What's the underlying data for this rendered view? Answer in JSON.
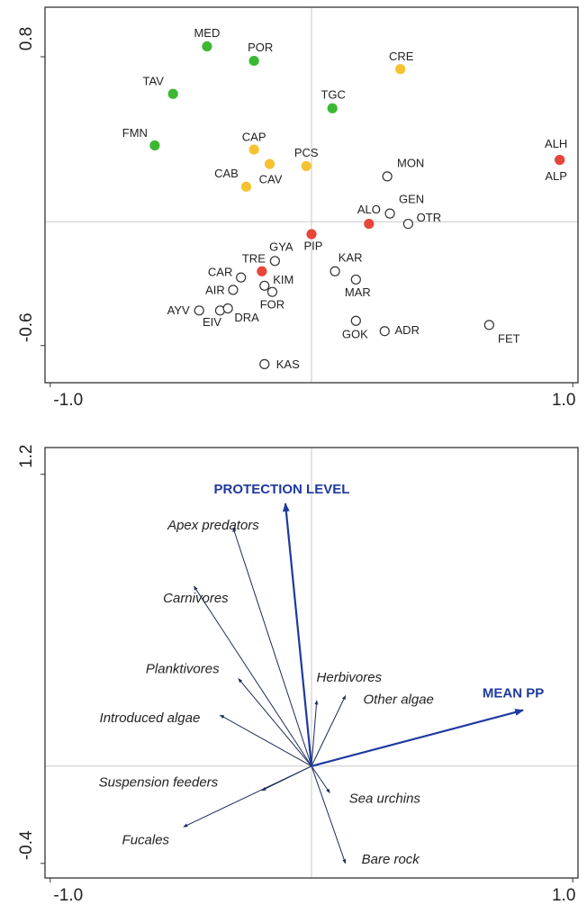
{
  "chart_data": [
    {
      "type": "scatter",
      "xlim": [
        -1.02,
        1.02
      ],
      "ylim": [
        -0.78,
        1.04
      ],
      "xticks": [
        {
          "value": -1,
          "label": "-1.0"
        },
        {
          "value": 1,
          "label": "1.0"
        }
      ],
      "yticks": [
        {
          "value": -0.6,
          "label": "-0.6"
        },
        {
          "value": 0.8,
          "label": "0.8"
        }
      ],
      "points": [
        {
          "label": "MED",
          "x": -0.4,
          "y": 0.85,
          "color": "#3cb833"
        },
        {
          "label": "POR",
          "x": -0.22,
          "y": 0.78,
          "color": "#3cb833"
        },
        {
          "label": "TAV",
          "x": -0.53,
          "y": 0.62,
          "color": "#3cb833"
        },
        {
          "label": "TGC",
          "x": 0.08,
          "y": 0.55,
          "color": "#3cb833"
        },
        {
          "label": "FMN",
          "x": -0.6,
          "y": 0.37,
          "color": "#3cb833"
        },
        {
          "label": "CRE",
          "x": 0.34,
          "y": 0.74,
          "color": "#f5c230"
        },
        {
          "label": "CAP",
          "x": -0.22,
          "y": 0.35,
          "color": "#f5c230"
        },
        {
          "label": "CAV",
          "x": -0.16,
          "y": 0.28,
          "color": "#f5c230"
        },
        {
          "label": "CAB",
          "x": -0.25,
          "y": 0.17,
          "color": "#f5c230"
        },
        {
          "label": "PCS",
          "x": -0.02,
          "y": 0.27,
          "color": "#f5c230"
        },
        {
          "label": "ALH",
          "x": 0.95,
          "y": 0.3,
          "color": "#e8463a"
        },
        {
          "label": "ALP",
          "x": 0.95,
          "y": 0.3,
          "color": "#e8463a"
        },
        {
          "label": "MON",
          "x": 0.29,
          "y": 0.22,
          "color": "#ffffff"
        },
        {
          "label": "GEN",
          "x": 0.3,
          "y": 0.04,
          "color": "#ffffff"
        },
        {
          "label": "ALO",
          "x": 0.22,
          "y": -0.01,
          "color": "#e8463a"
        },
        {
          "label": "OTR",
          "x": 0.37,
          "y": -0.01,
          "color": "#ffffff"
        },
        {
          "label": "PIP",
          "x": 0.0,
          "y": -0.06,
          "color": "#e8463a"
        },
        {
          "label": "GYA",
          "x": -0.14,
          "y": -0.19,
          "color": "#ffffff"
        },
        {
          "label": "KAR",
          "x": 0.09,
          "y": -0.24,
          "color": "#ffffff"
        },
        {
          "label": "TRE",
          "x": -0.19,
          "y": -0.24,
          "color": "#e8463a"
        },
        {
          "label": "CAR",
          "x": -0.27,
          "y": -0.27,
          "color": "#ffffff"
        },
        {
          "label": "MAR",
          "x": 0.17,
          "y": -0.28,
          "color": "#ffffff"
        },
        {
          "label": "KIM",
          "x": -0.18,
          "y": -0.31,
          "color": "#ffffff"
        },
        {
          "label": "AIR",
          "x": -0.3,
          "y": -0.33,
          "color": "#ffffff"
        },
        {
          "label": "FOR",
          "x": -0.15,
          "y": -0.34,
          "color": "#ffffff"
        },
        {
          "label": "AYV",
          "x": -0.43,
          "y": -0.43,
          "color": "#ffffff"
        },
        {
          "label": "EIV",
          "x": -0.35,
          "y": -0.43,
          "color": "#ffffff"
        },
        {
          "label": "DRA",
          "x": -0.32,
          "y": -0.42,
          "color": "#ffffff"
        },
        {
          "label": "GOK",
          "x": 0.17,
          "y": -0.48,
          "color": "#ffffff"
        },
        {
          "label": "ADR",
          "x": 0.28,
          "y": -0.53,
          "color": "#ffffff"
        },
        {
          "label": "FET",
          "x": 0.68,
          "y": -0.5,
          "color": "#ffffff"
        },
        {
          "label": "KAS",
          "x": -0.18,
          "y": -0.69,
          "color": "#ffffff"
        }
      ]
    },
    {
      "type": "biplot",
      "xlim": [
        -1.02,
        1.02
      ],
      "ylim": [
        -0.46,
        1.31
      ],
      "xticks": [
        {
          "value": -1,
          "label": "-1.0"
        },
        {
          "value": 1,
          "label": "1.0"
        }
      ],
      "yticks": [
        {
          "value": -0.4,
          "label": "-0.4"
        },
        {
          "value": 1.2,
          "label": "1.2"
        }
      ],
      "species_color": "#1c2a5a",
      "env_color": "#1f3a9e",
      "species": [
        {
          "label": "Apex predators",
          "x": -0.3,
          "y": 0.98
        },
        {
          "label": "Carnivores",
          "x": -0.45,
          "y": 0.74
        },
        {
          "label": "Planktivores",
          "x": -0.28,
          "y": 0.36
        },
        {
          "label": "Herbivores",
          "x": 0.02,
          "y": 0.27
        },
        {
          "label": "Other algae",
          "x": 0.13,
          "y": 0.29
        },
        {
          "label": "Introduced algae",
          "x": -0.35,
          "y": 0.21
        },
        {
          "label": "Suspension feeders",
          "x": -0.19,
          "y": -0.1
        },
        {
          "label": "Sea urchins",
          "x": 0.07,
          "y": -0.11
        },
        {
          "label": "Fucales",
          "x": -0.49,
          "y": -0.25
        },
        {
          "label": "Bare rock",
          "x": 0.13,
          "y": -0.4
        }
      ],
      "environment": [
        {
          "label": "PROTECTION LEVEL",
          "x": -0.1,
          "y": 1.08
        },
        {
          "label": "MEAN PP",
          "x": 0.81,
          "y": 0.23
        }
      ]
    }
  ]
}
